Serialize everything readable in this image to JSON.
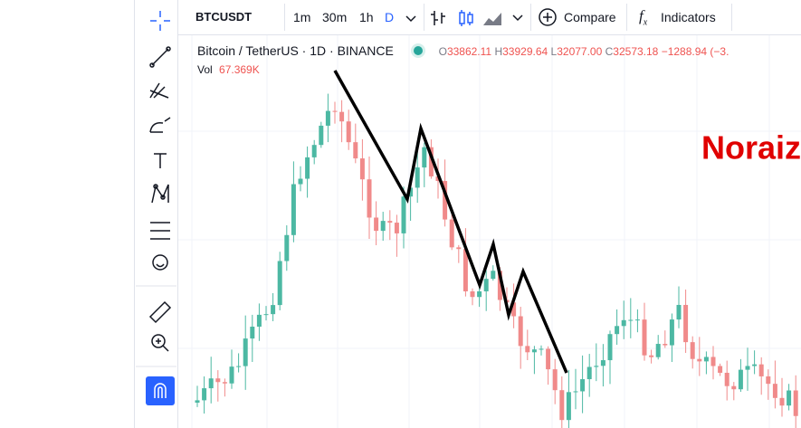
{
  "toolbar": {
    "symbol": "BTCUSDT",
    "intervals": [
      "1m",
      "30m",
      "1h",
      "D"
    ],
    "compare": "Compare",
    "indicators": "Indicators"
  },
  "legend": {
    "title": "Bitcoin / TetherUS · 1D · BINANCE",
    "ohlc": [
      {
        "label": "O",
        "value": "33862.11"
      },
      {
        "label": "H",
        "value": "33929.64"
      },
      {
        "label": "L",
        "value": "32077.00"
      },
      {
        "label": "C",
        "value": "32573.18"
      }
    ],
    "change": "−1288.94 (−3.",
    "volume_label": "Vol",
    "volume": "67.369K"
  },
  "watermark": "Noraiz"
}
